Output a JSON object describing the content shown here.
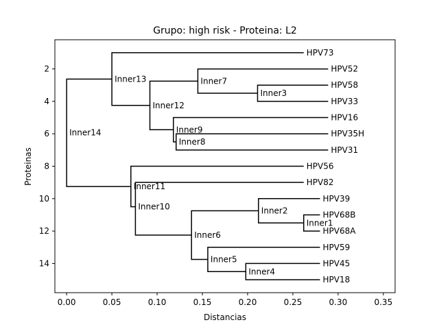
{
  "chart_data": {
    "type": "dendrogram",
    "title": "Grupo: high risk - Proteina: L2",
    "xlabel": "Distancias",
    "ylabel": "Proteinas",
    "xlim": [
      -0.013,
      0.363
    ],
    "ylim": [
      15.8,
      0.2
    ],
    "xticks": [
      0.0,
      0.05,
      0.1,
      0.15,
      0.2,
      0.25,
      0.3,
      0.35
    ],
    "xtick_labels": [
      "0.00",
      "0.05",
      "0.10",
      "0.15",
      "0.20",
      "0.25",
      "0.30",
      "0.35"
    ],
    "yticks": [
      2,
      4,
      6,
      8,
      10,
      12,
      14
    ],
    "ytick_labels": [
      "2",
      "4",
      "6",
      "8",
      "10",
      "12",
      "14"
    ],
    "grid": false,
    "leaves": [
      {
        "name": "HPV73",
        "x": 0.262,
        "y": 1
      },
      {
        "name": "HPV52",
        "x": 0.289,
        "y": 2
      },
      {
        "name": "HPV58",
        "x": 0.289,
        "y": 3
      },
      {
        "name": "HPV33",
        "x": 0.289,
        "y": 4
      },
      {
        "name": "HPV16",
        "x": 0.289,
        "y": 5
      },
      {
        "name": "HPV35H",
        "x": 0.289,
        "y": 6
      },
      {
        "name": "HPV31",
        "x": 0.289,
        "y": 7
      },
      {
        "name": "HPV56",
        "x": 0.262,
        "y": 8
      },
      {
        "name": "HPV82",
        "x": 0.262,
        "y": 9
      },
      {
        "name": "HPV39",
        "x": 0.28,
        "y": 10
      },
      {
        "name": "HPV68B",
        "x": 0.28,
        "y": 11
      },
      {
        "name": "HPV68A",
        "x": 0.28,
        "y": 12
      },
      {
        "name": "HPV59",
        "x": 0.28,
        "y": 13
      },
      {
        "name": "HPV45",
        "x": 0.28,
        "y": 14
      },
      {
        "name": "HPV18",
        "x": 0.28,
        "y": 15
      }
    ],
    "inner_nodes": [
      {
        "name": "Inner1",
        "x": 0.262,
        "y": 11.5,
        "children": [
          "HPV68B",
          "HPV68A"
        ]
      },
      {
        "name": "Inner2",
        "x": 0.212,
        "y": 10.75,
        "children": [
          "HPV39",
          "Inner1"
        ]
      },
      {
        "name": "Inner3",
        "x": 0.211,
        "y": 3.5,
        "children": [
          "HPV58",
          "HPV33"
        ]
      },
      {
        "name": "Inner4",
        "x": 0.198,
        "y": 14.5,
        "children": [
          "HPV45",
          "HPV18"
        ]
      },
      {
        "name": "Inner5",
        "x": 0.156,
        "y": 13.75,
        "children": [
          "HPV59",
          "Inner4"
        ]
      },
      {
        "name": "Inner6",
        "x": 0.138,
        "y": 12.25,
        "children": [
          "Inner2",
          "Inner5"
        ]
      },
      {
        "name": "Inner7",
        "x": 0.145,
        "y": 2.75,
        "children": [
          "HPV52",
          "Inner3"
        ]
      },
      {
        "name": "Inner8",
        "x": 0.121,
        "y": 6.5,
        "children": [
          "HPV35H",
          "HPV31"
        ]
      },
      {
        "name": "Inner9",
        "x": 0.118,
        "y": 5.75,
        "children": [
          "HPV16",
          "Inner8"
        ]
      },
      {
        "name": "Inner10",
        "x": 0.076,
        "y": 10.5,
        "children": [
          "HPV82",
          "Inner6"
        ]
      },
      {
        "name": "Inner11",
        "x": 0.071,
        "y": 9.25,
        "children": [
          "HPV56",
          "Inner10"
        ]
      },
      {
        "name": "Inner12",
        "x": 0.092,
        "y": 4.25,
        "children": [
          "Inner7",
          "Inner9"
        ]
      },
      {
        "name": "Inner13",
        "x": 0.05,
        "y": 2.625,
        "children": [
          "HPV73",
          "Inner12"
        ]
      },
      {
        "name": "Inner14",
        "x": 0.0,
        "y": 5.9375,
        "children": [
          "Inner13",
          "Inner11"
        ]
      }
    ]
  }
}
